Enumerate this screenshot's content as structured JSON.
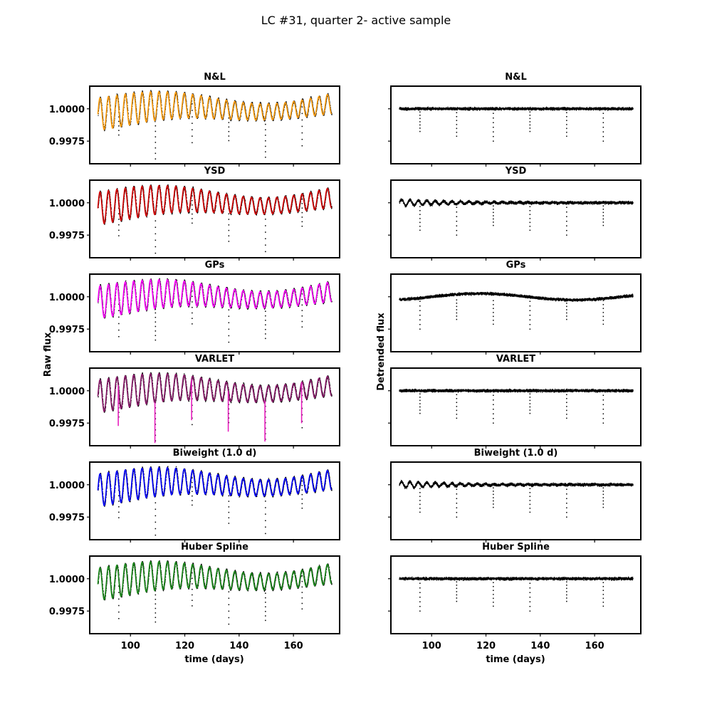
{
  "figure": {
    "suptitle": "LC #31, quarter 2- active sample",
    "left_ylabel": "Raw flux",
    "right_ylabel": "Detrended flux",
    "xlabel": "time (days)"
  },
  "colors": {
    "N&L": "#ff9e0d",
    "YSD": "#d40000",
    "GPs": "#ff00ff",
    "VARLET": "#8b1a6b",
    "Biweight": "#0000ff",
    "Huber": "#1a8a1a",
    "points": "#000000"
  },
  "chart_data": [
    {
      "type": "scatter",
      "panel": "raw",
      "column": "left",
      "rows": [
        {
          "title": "N&L",
          "trend_color_key": "N&L"
        },
        {
          "title": "YSD",
          "trend_color_key": "YSD"
        },
        {
          "title": "GPs",
          "trend_color_key": "GPs"
        },
        {
          "title": "VARLET",
          "trend_color_key": "VARLET"
        },
        {
          "title": "Biweight (1.0 d)",
          "trend_color_key": "Biweight"
        },
        {
          "title": "Huber Spline",
          "trend_color_key": "Huber"
        }
      ],
      "x_range": [
        85,
        177
      ],
      "y_range": [
        0.99575,
        1.00175
      ],
      "xticks": [
        100,
        120,
        140,
        160
      ],
      "yticks": [
        1.0,
        0.9975
      ],
      "ytick_labels": [
        "1.0000",
        "0.9975"
      ],
      "xtick_labels": [
        "100",
        "120",
        "140",
        "160"
      ],
      "series_summary": {
        "time_start": 88,
        "time_end": 174,
        "oscillation_amplitude": 0.0014,
        "oscillation_period_days": 3.1,
        "transit_times": [
          95.5,
          109,
          122.5,
          136,
          149.5,
          163
        ],
        "transit_depth": 0.0035
      }
    },
    {
      "type": "scatter",
      "panel": "detrended",
      "column": "right",
      "rows": [
        {
          "title": "N&L"
        },
        {
          "title": "YSD"
        },
        {
          "title": "GPs"
        },
        {
          "title": "VARLET"
        },
        {
          "title": "Biweight (1.0 d)"
        },
        {
          "title": "Huber Spline"
        }
      ],
      "x_range": [
        85,
        177
      ],
      "y_range": [
        0.99575,
        1.00175
      ],
      "xticks": [
        100,
        120,
        140,
        160
      ],
      "xtick_labels": [
        "100",
        "120",
        "140",
        "160"
      ],
      "yticks": [
        1.0,
        0.9975
      ],
      "series_summary": {
        "baseline": 1.0,
        "noise": 0.00012,
        "transit_times": [
          95.5,
          109,
          122.5,
          136,
          149.5,
          163
        ],
        "transit_depth": 0.0025
      }
    }
  ]
}
